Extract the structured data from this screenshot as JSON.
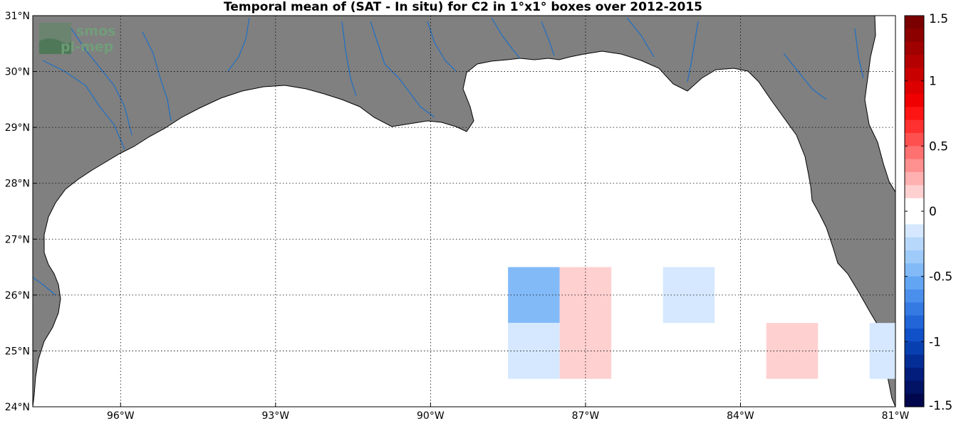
{
  "title": "Temporal mean of (SAT - In situ) for C2 in 1°x1° boxes over 2012-2015",
  "logo": {
    "line1": "smos",
    "line2": "pi-mep"
  },
  "colors": {
    "land": "#808080",
    "ocean": "#ffffff",
    "river": "#1f6fc4",
    "coast": "#000000"
  },
  "map": {
    "lon_range": [
      -97.7,
      -81.0
    ],
    "lat_range": [
      24.0,
      31.0
    ],
    "lon_ticks": [
      {
        "value": -96,
        "label": "96°W"
      },
      {
        "value": -93,
        "label": "93°W"
      },
      {
        "value": -90,
        "label": "90°W"
      },
      {
        "value": -87,
        "label": "87°W"
      },
      {
        "value": -84,
        "label": "84°W"
      },
      {
        "value": -81,
        "label": "81°W"
      }
    ],
    "lat_ticks": [
      {
        "value": 24,
        "label": "24°N"
      },
      {
        "value": 25,
        "label": "25°N"
      },
      {
        "value": 26,
        "label": "26°N"
      },
      {
        "value": 27,
        "label": "27°N"
      },
      {
        "value": 28,
        "label": "28°N"
      },
      {
        "value": 29,
        "label": "29°N"
      },
      {
        "value": 30,
        "label": "30°N"
      },
      {
        "value": 31,
        "label": "31°N"
      }
    ],
    "grid": true
  },
  "chart_data": {
    "type": "heatmap",
    "title": "Temporal mean of (SAT - In situ) for C2 in 1°x1° boxes over 2012-2015",
    "cells": [
      {
        "lon_min": -88.5,
        "lon_max": -87.5,
        "lat_min": 25.5,
        "lat_max": 26.5,
        "value": -0.4
      },
      {
        "lon_min": -88.5,
        "lon_max": -87.5,
        "lat_min": 24.5,
        "lat_max": 25.5,
        "value": -0.15
      },
      {
        "lon_min": -87.5,
        "lon_max": -86.5,
        "lat_min": 24.5,
        "lat_max": 26.5,
        "value": 0.15
      },
      {
        "lon_min": -85.5,
        "lon_max": -84.5,
        "lat_min": 25.5,
        "lat_max": 26.5,
        "value": -0.15
      },
      {
        "lon_min": -83.5,
        "lon_max": -82.5,
        "lat_min": 24.5,
        "lat_max": 25.5,
        "value": 0.15
      },
      {
        "lon_min": -81.5,
        "lon_max": -81.0,
        "lat_min": 24.5,
        "lat_max": 25.5,
        "value": -0.15
      }
    ],
    "colorbar": {
      "range": [
        -1.5,
        1.5
      ],
      "ticks": [
        {
          "value": 1.5,
          "label": "1.5"
        },
        {
          "value": 1,
          "label": "1"
        },
        {
          "value": 0.5,
          "label": "0.5"
        },
        {
          "value": 0,
          "label": "0"
        },
        {
          "value": -0.5,
          "label": "-0.5"
        },
        {
          "value": -1,
          "label": "-1"
        },
        {
          "value": -1.5,
          "label": "-1.5"
        }
      ],
      "colors_top_to_bottom": [
        "#7a0000",
        "#8c0000",
        "#a00000",
        "#b40000",
        "#c80000",
        "#dc0000",
        "#f00000",
        "#ff1414",
        "#ff3030",
        "#ff5050",
        "#ff7070",
        "#ff9090",
        "#ffb0b0",
        "#ffd0d0",
        "#ffffff",
        "#ffffff",
        "#d5e8ff",
        "#b8d8fb",
        "#9ecbfa",
        "#82baf8",
        "#62a5f3",
        "#4a8fec",
        "#3579e3",
        "#2165d8",
        "#1050c8",
        "#083fb0",
        "#052d96",
        "#031d7c",
        "#021264",
        "#00074c"
      ]
    }
  }
}
